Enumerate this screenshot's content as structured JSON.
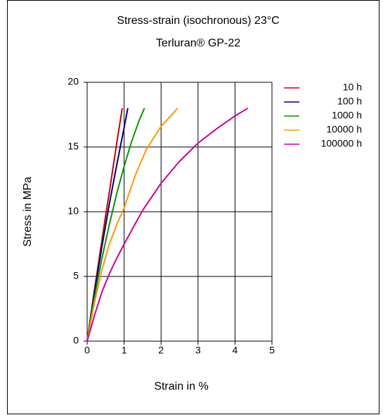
{
  "chart_data": {
    "type": "line",
    "title": "Stress-strain (isochronous) 23°C",
    "subtitle": "Terluran® GP-22",
    "x_label": "Strain in %",
    "y_label": "Stress in MPa",
    "xlim": [
      0,
      5
    ],
    "xticks": [
      0,
      1,
      2,
      3,
      4,
      5
    ],
    "ylim": [
      0,
      20
    ],
    "yticks": [
      0,
      5,
      10,
      15,
      20
    ],
    "grid": true,
    "legend": "right",
    "series": [
      {
        "name": "10 h",
        "color": "#cc0000",
        "x": [
          0,
          0.1,
          0.2,
          0.3,
          0.4,
          0.5,
          0.6,
          0.7,
          0.8,
          0.9,
          0.95
        ],
        "values": [
          0,
          2,
          4,
          5.9,
          7.8,
          9.7,
          11.5,
          13.4,
          15.3,
          17.1,
          18
        ]
      },
      {
        "name": "100 h",
        "color": "#000080",
        "x": [
          0,
          0.1,
          0.2,
          0.4,
          0.6,
          0.8,
          1.0,
          1.1
        ],
        "values": [
          0,
          2,
          3.8,
          7.3,
          10.6,
          13.6,
          16.5,
          18
        ]
      },
      {
        "name": "1000 h",
        "color": "#009900",
        "x": [
          0,
          0.1,
          0.2,
          0.4,
          0.6,
          0.8,
          1.0,
          1.2,
          1.4,
          1.55
        ],
        "values": [
          0,
          1.8,
          3.4,
          6.4,
          9.0,
          11.4,
          13.5,
          15.4,
          17.0,
          18
        ]
      },
      {
        "name": "10000 h",
        "color": "#ff9900",
        "x": [
          0,
          0.2,
          0.4,
          0.6,
          0.8,
          1.0,
          1.3,
          1.6,
          2.0,
          2.45
        ],
        "values": [
          0,
          3,
          5.5,
          7.5,
          9.0,
          10.3,
          12.8,
          14.8,
          16.6,
          18
        ]
      },
      {
        "name": "100000 h",
        "color": "#cc0099",
        "x": [
          0,
          0.2,
          0.4,
          0.6,
          0.8,
          1.0,
          1.5,
          2.0,
          2.5,
          3.0,
          3.5,
          4.0,
          4.35
        ],
        "values": [
          0,
          2,
          3.8,
          5.2,
          6.4,
          7.5,
          10.1,
          12.2,
          13.9,
          15.3,
          16.4,
          17.4,
          18
        ]
      }
    ]
  }
}
